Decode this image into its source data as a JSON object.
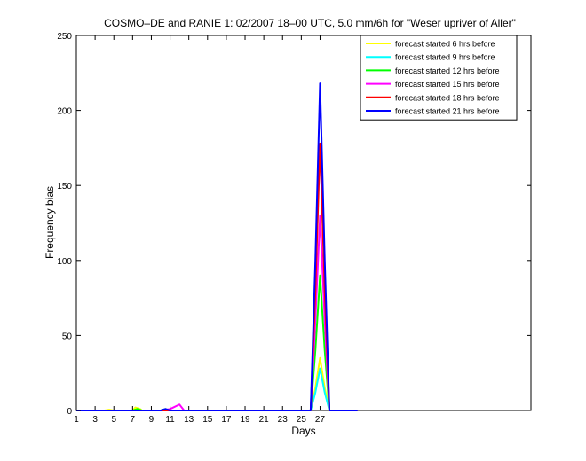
{
  "chart_data": {
    "type": "line",
    "title": "COSMO–DE and RANIE 1: 02/2007 18–00 UTC, 5.0 mm/6h for \"Weser upriver of Aller\"",
    "xlabel": "Days",
    "ylabel": "Frequency bias",
    "xlim": [
      1,
      49.5
    ],
    "ylim": [
      0,
      250
    ],
    "xticks": [
      1,
      3,
      5,
      7,
      9,
      11,
      13,
      15,
      17,
      19,
      21,
      23,
      25,
      27
    ],
    "yticks": [
      0,
      50,
      100,
      150,
      200,
      250
    ],
    "grid": false,
    "legend_position": "top-right",
    "series": [
      {
        "name": "forecast started 6 hrs before",
        "color": "#ffff00",
        "points": [
          [
            1,
            0
          ],
          [
            4,
            0
          ],
          [
            4.5,
            0.5
          ],
          [
            5,
            0
          ],
          [
            7,
            0
          ],
          [
            7.3,
            2
          ],
          [
            7.8,
            1
          ],
          [
            8,
            0
          ],
          [
            25,
            0
          ],
          [
            26,
            0
          ],
          [
            26.5,
            15
          ],
          [
            27,
            35
          ],
          [
            27.5,
            15
          ],
          [
            28,
            0
          ],
          [
            31,
            0
          ]
        ]
      },
      {
        "name": "forecast started 9 hrs before",
        "color": "#00ffff",
        "points": [
          [
            1,
            0
          ],
          [
            25,
            0
          ],
          [
            26,
            0
          ],
          [
            26.5,
            12
          ],
          [
            27,
            28
          ],
          [
            27.5,
            12
          ],
          [
            28,
            0
          ],
          [
            31,
            0
          ]
        ]
      },
      {
        "name": "forecast started 12 hrs before",
        "color": "#00ff00",
        "points": [
          [
            1,
            0
          ],
          [
            7,
            0
          ],
          [
            7.5,
            1
          ],
          [
            8,
            0
          ],
          [
            10,
            0
          ],
          [
            10.5,
            1
          ],
          [
            11,
            0
          ],
          [
            25,
            0
          ],
          [
            26,
            0
          ],
          [
            26.5,
            40
          ],
          [
            27,
            90
          ],
          [
            27.5,
            40
          ],
          [
            28,
            0
          ],
          [
            31,
            0
          ]
        ]
      },
      {
        "name": "forecast started 15 hrs before",
        "color": "#ff00ff",
        "points": [
          [
            1,
            0
          ],
          [
            10,
            0
          ],
          [
            11,
            1
          ],
          [
            12,
            4
          ],
          [
            12.5,
            0
          ],
          [
            25,
            0
          ],
          [
            26,
            0
          ],
          [
            26.5,
            60
          ],
          [
            27,
            130
          ],
          [
            27.5,
            60
          ],
          [
            28,
            0
          ],
          [
            31,
            0
          ]
        ]
      },
      {
        "name": "forecast started 18 hrs before",
        "color": "#ff0000",
        "points": [
          [
            1,
            0
          ],
          [
            25,
            0
          ],
          [
            26,
            0
          ],
          [
            26.5,
            80
          ],
          [
            27,
            178
          ],
          [
            27.5,
            80
          ],
          [
            28,
            0
          ],
          [
            31,
            0
          ]
        ]
      },
      {
        "name": "forecast started 21 hrs before",
        "color": "#0000ff",
        "points": [
          [
            1,
            0
          ],
          [
            10,
            0
          ],
          [
            10.5,
            1
          ],
          [
            11,
            0
          ],
          [
            25,
            0
          ],
          [
            26,
            0
          ],
          [
            26.5,
            100
          ],
          [
            27,
            218
          ],
          [
            27.5,
            100
          ],
          [
            28,
            0
          ],
          [
            31,
            0
          ]
        ]
      }
    ]
  }
}
